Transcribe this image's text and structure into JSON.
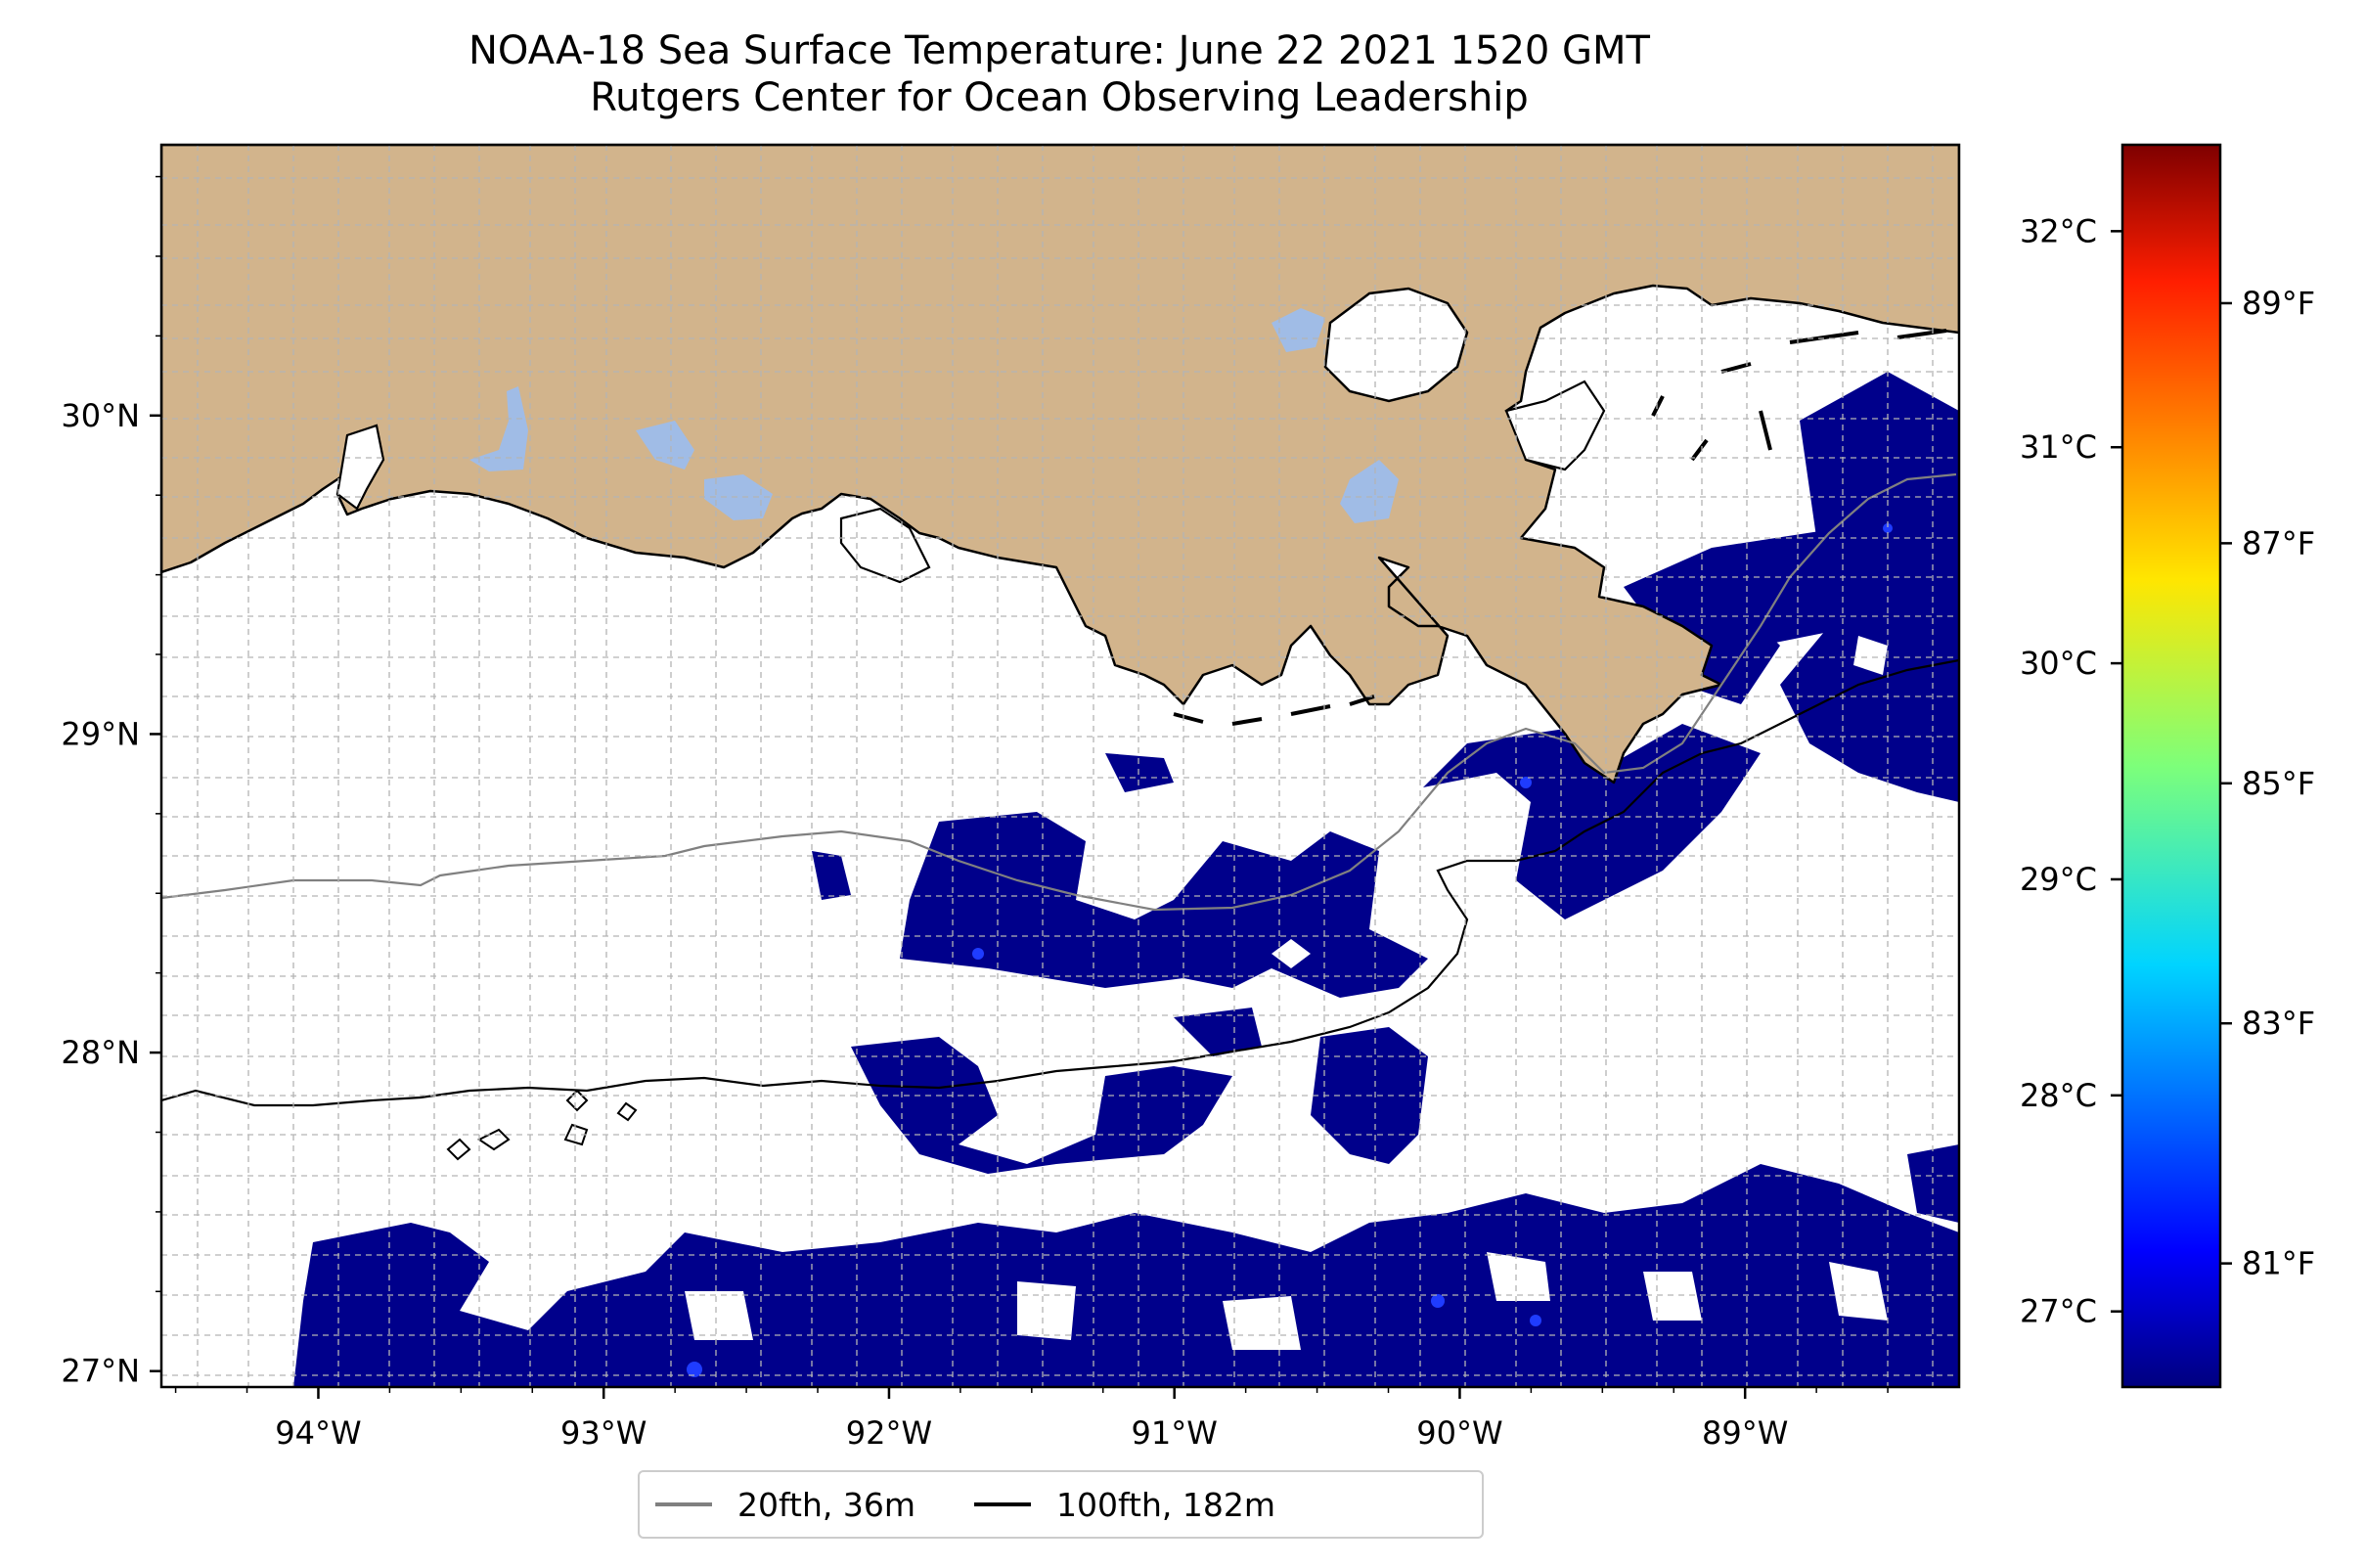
{
  "chart_data": {
    "type": "heatmap",
    "title": "NOAA-18 Sea Surface Temperature: June 22 2021 1520 GMT",
    "subtitle": "Rutgers Center for Ocean Observing Leadership",
    "x_ticks": [
      "94°W",
      "93°W",
      "92°W",
      "91°W",
      "90°W",
      "89°W"
    ],
    "y_ticks": [
      "30°N",
      "29°N",
      "28°N",
      "27°N"
    ],
    "xlim": [
      -94.55,
      -88.25
    ],
    "ylim": [
      26.95,
      30.85
    ],
    "colorbar": {
      "colormap": "jet",
      "celsius_ticks": [
        "32°C",
        "31°C",
        "30°C",
        "29°C",
        "28°C",
        "27°C"
      ],
      "celsius_values": [
        32,
        31,
        30,
        29,
        28,
        27
      ],
      "fahrenheit_ticks": [
        "89°F",
        "87°F",
        "85°F",
        "83°F",
        "81°F"
      ],
      "fahrenheit_values": [
        89,
        87,
        85,
        83,
        81
      ],
      "range_c": [
        26.65,
        32.4
      ]
    },
    "legend": [
      {
        "label": "20fth, 36m",
        "color": "#808080"
      },
      {
        "label": "100fth, 182m",
        "color": "#000000"
      }
    ],
    "colors": {
      "land": "#d2b48c",
      "lakes": "#a0bce6",
      "sst_dominant": "#00008b",
      "sst_secondary": "#0a1fd0"
    },
    "grid": true
  }
}
